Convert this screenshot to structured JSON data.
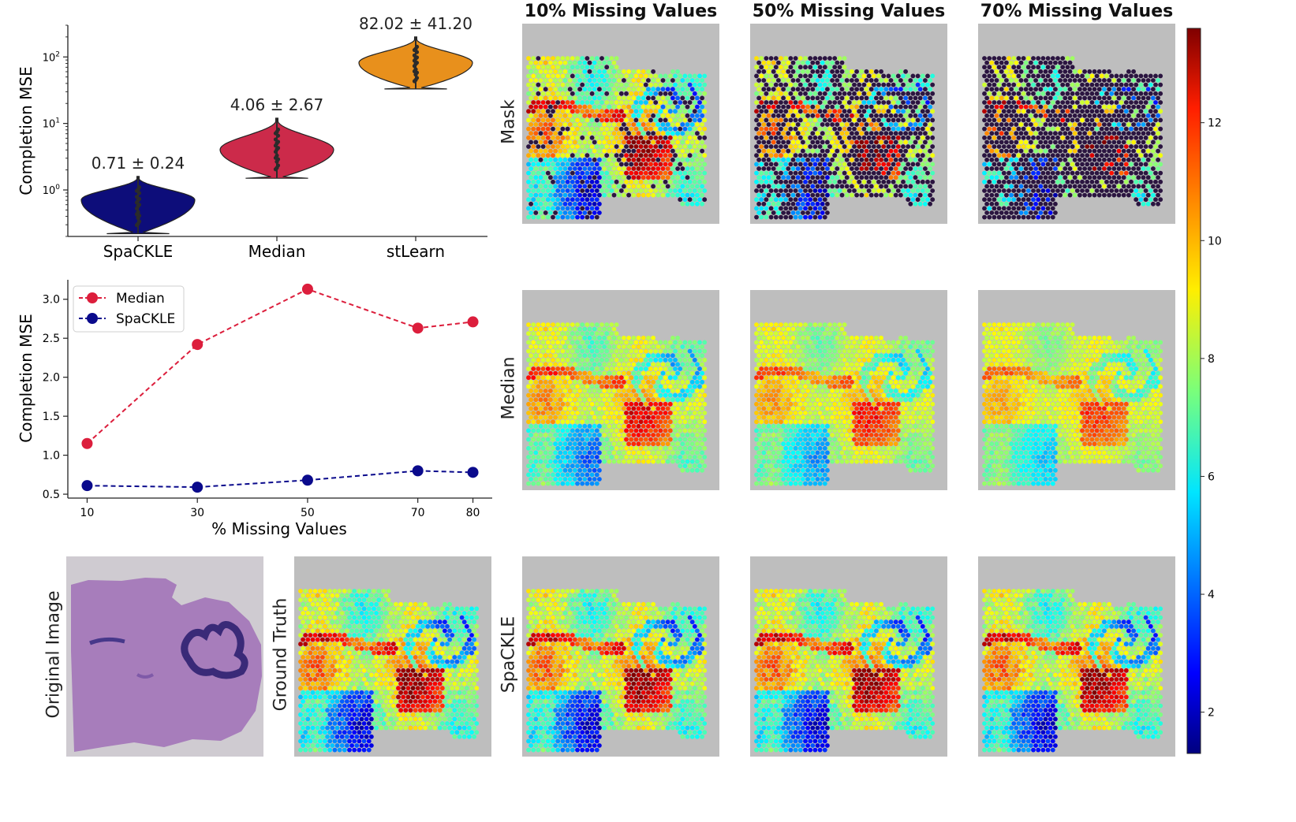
{
  "chart_data": [
    {
      "type": "violin",
      "title": "",
      "xlabel": "",
      "ylabel": "Completion MSE",
      "yscale": "log",
      "ylim": [
        0.2,
        300
      ],
      "yticks": [
        "10^0",
        "10^1",
        "10^2"
      ],
      "categories": [
        "SpaCKLE",
        "Median",
        "stLearn"
      ],
      "colors": [
        "#0d0d7a",
        "#cc2a4a",
        "#e8901c"
      ],
      "means": [
        0.71,
        4.06,
        82.02
      ],
      "stds": [
        0.24,
        2.67,
        41.2
      ],
      "annotations": [
        "0.71 ± 0.24",
        "4.06 ± 2.67",
        "82.02 ± 41.20"
      ],
      "ranges": [
        [
          0.22,
          1.6
        ],
        [
          1.5,
          12
        ],
        [
          33,
          200
        ]
      ]
    },
    {
      "type": "line",
      "xlabel": "% Missing Values",
      "ylabel": "Completion MSE",
      "x": [
        10,
        30,
        50,
        70,
        80
      ],
      "ylim": [
        0.45,
        3.25
      ],
      "yticks": [
        "0.5",
        "1.0",
        "1.5",
        "2.0",
        "2.5",
        "3.0"
      ],
      "legend_position": "top-left",
      "series": [
        {
          "name": "Median",
          "color": "#dc1e3c",
          "values": [
            1.15,
            2.42,
            3.13,
            2.63,
            2.71
          ]
        },
        {
          "name": "SpaCKLE",
          "color": "#0a0a8c",
          "values": [
            0.61,
            0.59,
            0.68,
            0.8,
            0.78
          ]
        }
      ]
    },
    {
      "type": "heatmap",
      "column_titles": [
        "10% Missing Values",
        "50% Missing Values",
        "70% Missing Values"
      ],
      "row_labels": [
        "Mask",
        "Median",
        "SpaCKLE"
      ],
      "extra_panels": [
        "Original Image",
        "Ground Truth"
      ],
      "mask_fractions": [
        0.1,
        0.5,
        0.7
      ],
      "colorbar": {
        "colormap": "jet",
        "ticks": [
          "2",
          "4",
          "6",
          "8",
          "10",
          "12"
        ],
        "range": [
          1.3,
          13.6
        ]
      }
    }
  ]
}
